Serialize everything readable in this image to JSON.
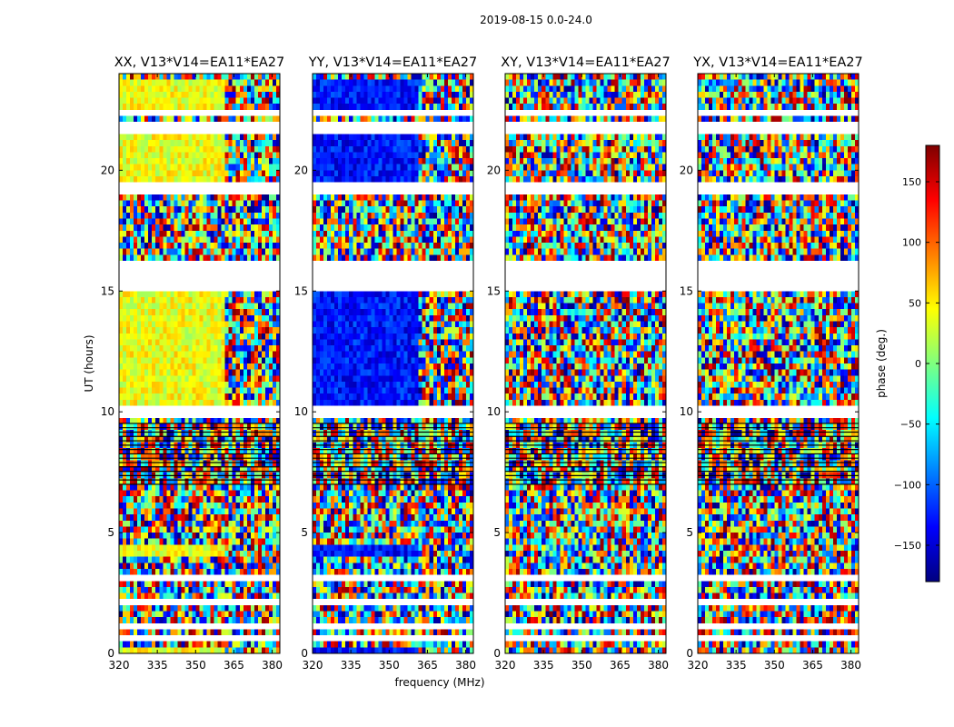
{
  "figure": {
    "suptitle": "2019-08-15 0.0-24.0",
    "xlabel": "frequency (MHz)",
    "ylabel": "UT (hours)"
  },
  "chart_data": {
    "type": "heatmap",
    "title": "2019-08-15 0.0-24.0",
    "xlabel": "frequency (MHz)",
    "ylabel": "UT (hours)",
    "xlim": [
      320,
      383
    ],
    "ylim": [
      0,
      24
    ],
    "xticks": [
      320,
      335,
      350,
      365,
      380
    ],
    "yticks": [
      0,
      5,
      10,
      15,
      20
    ],
    "panels": [
      {
        "title": "XX, V13*V14=EA11*EA27",
        "coherent_phase_deg": 40
      },
      {
        "title": "YY, V13*V14=EA11*EA27",
        "coherent_phase_deg": -130
      },
      {
        "title": "XY, V13*V14=EA11*EA27",
        "coherent_phase_deg": null
      },
      {
        "title": "YX, V13*V14=EA11*EA27",
        "coherent_phase_deg": null
      }
    ],
    "coherent_bands_hours": [
      [
        0.0,
        0.3
      ],
      [
        4.1,
        4.6
      ],
      [
        10.3,
        15.0
      ],
      [
        19.6,
        21.5
      ],
      [
        22.5,
        23.7
      ]
    ],
    "flagged_bands_hours": [
      [
        0.6,
        0.85
      ],
      [
        1.1,
        1.3
      ],
      [
        2.05,
        2.3
      ],
      [
        3.0,
        3.15
      ],
      [
        9.75,
        10.25
      ],
      [
        15.1,
        16.2
      ],
      [
        19.0,
        19.5
      ],
      [
        21.6,
        21.9
      ],
      [
        22.25,
        22.45
      ]
    ],
    "rfi_bands_hours": [
      [
        7.0,
        9.6
      ]
    ],
    "colorbar": {
      "label": "phase (deg.)",
      "range": [
        -180,
        180
      ],
      "ticks": [
        -150,
        -100,
        -50,
        0,
        50,
        100,
        150
      ],
      "ticklabels": [
        "−150",
        "−100",
        "−50",
        "0",
        "50",
        "100",
        "150"
      ],
      "colormap": [
        "#00007f",
        "#0000ff",
        "#007fff",
        "#00ffff",
        "#7fff7f",
        "#ffff00",
        "#ff7f00",
        "#ff0000",
        "#7f0000"
      ]
    }
  }
}
